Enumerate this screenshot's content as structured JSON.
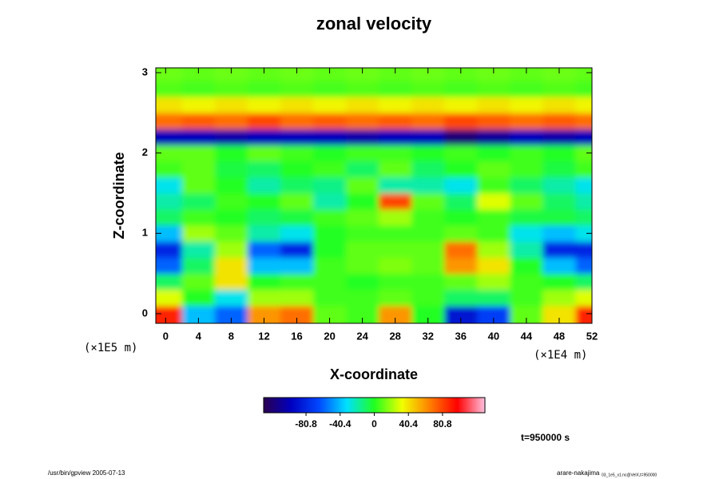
{
  "chart_data": {
    "type": "heatmap",
    "title": "zonal velocity",
    "xlabel": "X-coordinate",
    "ylabel": "Z-coordinate",
    "x_unit": "(×1E4 m)",
    "y_unit": "(×1E5 m)",
    "time_label": "t=950000 s",
    "footer_left": "/usr/bin/gpview 2005-07-13",
    "footer_right": "arare-nakajima",
    "footer_right_small": "03_1e5_x1.nc@VelX,t=950000",
    "xlim": [
      -1.2,
      52
    ],
    "ylim": [
      -0.12,
      3.06
    ],
    "xticks": [
      0,
      4,
      8,
      12,
      16,
      20,
      24,
      28,
      32,
      36,
      40,
      44,
      48,
      52
    ],
    "yticks": [
      0,
      1,
      2,
      3
    ],
    "clim": [
      -131,
      131
    ],
    "cticks": [
      -80.8,
      -40.4,
      0,
      40.4,
      80.8
    ],
    "colormap": [
      "#2a0050",
      "#0000c0",
      "#0048ff",
      "#00e0ff",
      "#20ff20",
      "#f0ff00",
      "#ff8000",
      "#ff0000",
      "#ffc0e0"
    ],
    "x": [
      0,
      4,
      8,
      12,
      16,
      20,
      24,
      28,
      32,
      36,
      40,
      44,
      48,
      52
    ],
    "y": [
      0,
      0.2,
      0.4,
      0.6,
      0.8,
      1.0,
      1.2,
      1.4,
      1.6,
      1.8,
      2.0,
      2.2,
      2.4,
      2.6,
      2.8,
      3.0
    ],
    "z": [
      [
        90,
        -40,
        -60,
        60,
        70,
        10,
        5,
        60,
        0,
        -90,
        -70,
        10,
        40,
        90
      ],
      [
        30,
        0,
        -30,
        20,
        20,
        5,
        5,
        10,
        5,
        -10,
        -10,
        5,
        20,
        30
      ],
      [
        -10,
        10,
        40,
        0,
        5,
        5,
        0,
        5,
        5,
        10,
        20,
        5,
        0,
        -10
      ],
      [
        -60,
        -10,
        40,
        -40,
        -40,
        5,
        10,
        15,
        10,
        60,
        40,
        0,
        -40,
        -60
      ],
      [
        -80,
        -20,
        20,
        -60,
        -80,
        0,
        10,
        10,
        10,
        70,
        20,
        -20,
        -80,
        -80
      ],
      [
        -40,
        20,
        10,
        -20,
        -30,
        0,
        5,
        5,
        5,
        10,
        5,
        -30,
        -40,
        -30
      ],
      [
        -10,
        5,
        0,
        -10,
        -5,
        5,
        10,
        20,
        5,
        0,
        5,
        -5,
        -5,
        -10
      ],
      [
        -20,
        -10,
        5,
        0,
        10,
        -20,
        0,
        80,
        10,
        -10,
        30,
        10,
        -10,
        -20
      ],
      [
        -30,
        10,
        0,
        -20,
        -10,
        -15,
        10,
        -20,
        -20,
        -30,
        5,
        -10,
        -20,
        -30
      ],
      [
        5,
        10,
        -5,
        -10,
        0,
        5,
        -10,
        10,
        -10,
        0,
        10,
        5,
        -5,
        5
      ],
      [
        10,
        10,
        0,
        10,
        5,
        0,
        5,
        5,
        0,
        5,
        0,
        5,
        0,
        10
      ],
      [
        -100,
        -100,
        -105,
        -100,
        -100,
        -100,
        -105,
        -100,
        -100,
        -120,
        -110,
        -100,
        -105,
        -100
      ],
      [
        70,
        75,
        70,
        80,
        70,
        75,
        70,
        75,
        70,
        80,
        75,
        70,
        75,
        70
      ],
      [
        40,
        35,
        40,
        35,
        40,
        35,
        40,
        35,
        40,
        35,
        40,
        35,
        40,
        35
      ],
      [
        8,
        6,
        8,
        6,
        8,
        6,
        8,
        6,
        8,
        6,
        8,
        6,
        8,
        6
      ],
      [
        12,
        10,
        12,
        10,
        12,
        10,
        12,
        10,
        12,
        10,
        12,
        10,
        12,
        10
      ]
    ]
  }
}
